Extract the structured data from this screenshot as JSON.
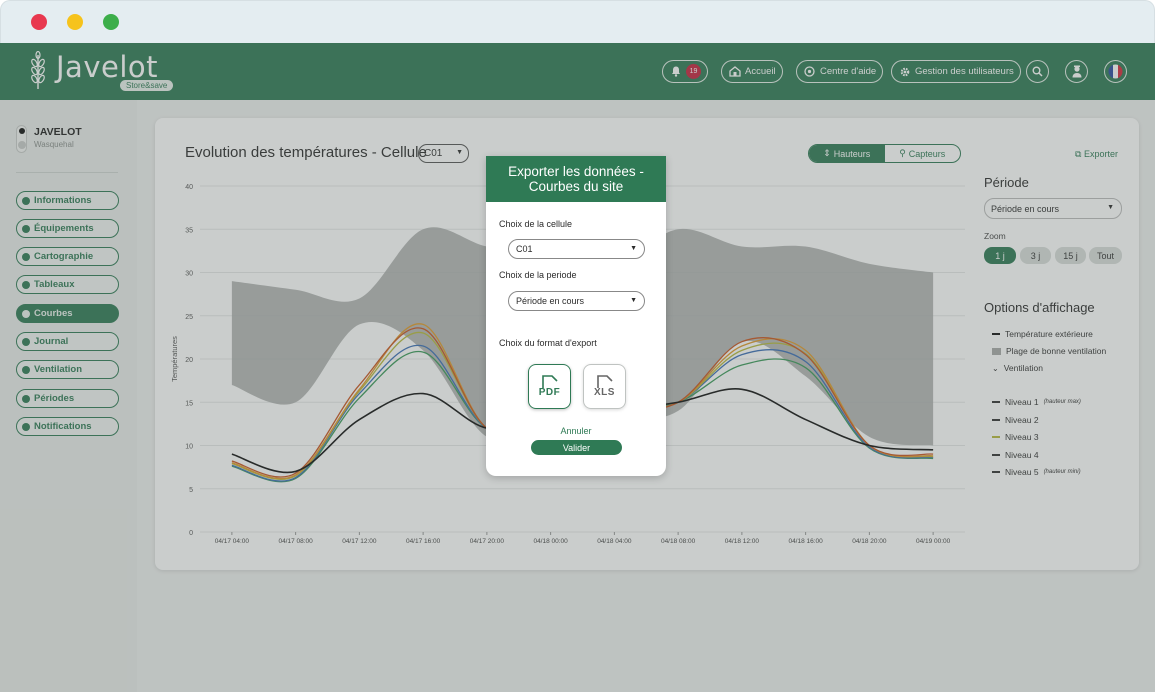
{
  "header": {
    "logo_text": "Javelot",
    "logo_sub": "Store&save",
    "notif_count": "19",
    "accueil": "Accueil",
    "help": "Centre d'aide",
    "users": "Gestion des utilisateurs",
    "icons": [
      "bell-icon",
      "home-icon",
      "help-icon",
      "gear-icon",
      "search-icon",
      "user-icon",
      "flag-fr-icon"
    ]
  },
  "sidebar": {
    "site_name": "JAVELOT",
    "site_city": "Wasquehal",
    "items": [
      {
        "label": "Informations",
        "active": false
      },
      {
        "label": "Équipements",
        "active": false
      },
      {
        "label": "Cartographie",
        "active": false
      },
      {
        "label": "Tableaux",
        "active": false
      },
      {
        "label": "Courbes",
        "active": true
      },
      {
        "label": "Journal",
        "active": false
      },
      {
        "label": "Ventilation",
        "active": false
      },
      {
        "label": "Périodes",
        "active": false
      },
      {
        "label": "Notifications",
        "active": false
      }
    ]
  },
  "card": {
    "title": "Evolution des températures - Cellule",
    "cell_value": "C01",
    "seg_hauteurs": "Hauteurs",
    "seg_capteurs": "Capteurs",
    "export": "Exporter",
    "periode_title": "Période",
    "periode_value": "Période en cours",
    "zoom_label": "Zoom",
    "zoom_options": [
      "1 j",
      "3 j",
      "15 j",
      "Tout"
    ],
    "zoom_selected": "1 j",
    "options_title": "Options d'affichage",
    "legend": {
      "ext": "Température extérieure",
      "band": "Plage de bonne ventilation",
      "vent": "Ventilation",
      "n1": "Niveau 1",
      "n1_note": "(hauteur max)",
      "n2": "Niveau 2",
      "n3": "Niveau 3",
      "n4": "Niveau 4",
      "n5": "Niveau 5",
      "n5_note": "(hauteur mini)"
    }
  },
  "colors": {
    "brand": "#2f7a55",
    "ext": "#111111",
    "n1": "#c9541f",
    "n2": "#e09a2a",
    "n3": "#b7b93c",
    "n4": "#3b6fb6",
    "n5": "#3c9a5a",
    "band": "#a8aaa9"
  },
  "chart_data": {
    "type": "line",
    "ylabel": "Températures",
    "ylim": [
      0,
      40
    ],
    "yticks": [
      0,
      5,
      10,
      15,
      20,
      25,
      30,
      35,
      40
    ],
    "x": [
      "04/17 04:00",
      "04/17 08:00",
      "04/17 12:00",
      "04/17 16:00",
      "04/17 20:00",
      "04/18 00:00",
      "04/18 04:00",
      "04/18 08:00",
      "04/18 12:00",
      "04/18 16:00",
      "04/18 20:00",
      "04/19 00:00"
    ],
    "band": {
      "name": "Plage de bonne ventilation",
      "upper": [
        29,
        28,
        27,
        35,
        33,
        32,
        31,
        35,
        33,
        33,
        31,
        30
      ],
      "lower": [
        17,
        15,
        24,
        21,
        11,
        12,
        13,
        14,
        22,
        18,
        11,
        10
      ]
    },
    "series": [
      {
        "name": "Température extérieure",
        "values": [
          9,
          7,
          13,
          16,
          12,
          13,
          14,
          15,
          16.5,
          13,
          10,
          9.5
        ]
      },
      {
        "name": "Niveau 1",
        "values": [
          8.2,
          6.8,
          17,
          23.5,
          12,
          13,
          14,
          15,
          22,
          20.5,
          10,
          9
        ]
      },
      {
        "name": "Niveau 2",
        "values": [
          8.0,
          6.6,
          16.5,
          24,
          12,
          13,
          14,
          15,
          21.5,
          21,
          10,
          8.8
        ]
      },
      {
        "name": "Niveau 3",
        "values": [
          7.9,
          6.5,
          16.3,
          23,
          12,
          13,
          14,
          15,
          21,
          20.6,
          10,
          8.7
        ]
      },
      {
        "name": "Niveau 4",
        "values": [
          7.7,
          6.3,
          16,
          21.5,
          12,
          13,
          14,
          15,
          20.5,
          19.7,
          9.8,
          8.6
        ]
      },
      {
        "name": "Niveau 5",
        "values": [
          7.6,
          6.2,
          15.5,
          20.8,
          12,
          13,
          14,
          15,
          19.3,
          19.0,
          9.7,
          8.5
        ]
      }
    ]
  },
  "modal": {
    "title_line1": "Exporter les données -",
    "title_line2": "Courbes du site",
    "cell_label": "Choix de la cellule",
    "cell_value": "C01",
    "period_label": "Choix de la periode",
    "period_value": "Période en cours",
    "format_label": "Choix du format d'export",
    "pdf": "PDF",
    "xls": "XLS",
    "cancel": "Annuler",
    "validate": "Valider"
  }
}
